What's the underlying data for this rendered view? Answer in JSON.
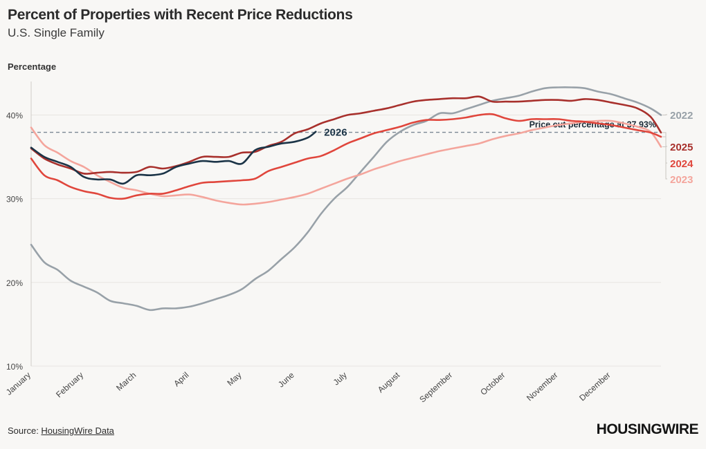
{
  "header": {
    "title": "Percent of Properties with Recent Price Reductions",
    "subtitle": "U.S. Single Family"
  },
  "footer": {
    "source_prefix": "Source: ",
    "source_link": "HousingWire Data",
    "logo": "HOUSINGWIRE"
  },
  "chart_data": {
    "type": "line",
    "ylabel": "Percentage",
    "xlabel": "",
    "ylim": [
      10,
      44
    ],
    "yticks": [
      10,
      20,
      30,
      40
    ],
    "ytick_labels": [
      "10%",
      "20%",
      "30%",
      "40%"
    ],
    "xlim": [
      0,
      11.95
    ],
    "xticks": [
      0,
      1,
      2,
      3,
      4,
      5,
      6,
      7,
      8,
      9,
      10,
      11
    ],
    "xtick_labels": [
      "January",
      "February",
      "March",
      "April",
      "May",
      "June",
      "July",
      "August",
      "September",
      "October",
      "November",
      "December"
    ],
    "grid": "horizontal",
    "legend": "direct labels at line ends",
    "reference_line": {
      "value": 37.93,
      "label": "Price cut percentage at 37.93%",
      "color": "#7b8794"
    },
    "series": [
      {
        "name": "2022",
        "color": "#98a1a8",
        "x": [
          0,
          0.25,
          0.5,
          0.75,
          1,
          1.25,
          1.5,
          1.75,
          2,
          2.25,
          2.5,
          2.75,
          3,
          3.25,
          3.5,
          3.75,
          4,
          4.25,
          4.5,
          4.75,
          5,
          5.25,
          5.5,
          5.75,
          6,
          6.25,
          6.5,
          6.75,
          7,
          7.25,
          7.5,
          7.75,
          8,
          8.25,
          8.5,
          8.75,
          9,
          9.25,
          9.5,
          9.75,
          10,
          10.25,
          10.5,
          10.75,
          11,
          11.25,
          11.5,
          11.75,
          11.95
        ],
        "values": [
          24.5,
          22.4,
          21.5,
          20.2,
          19.5,
          18.8,
          17.8,
          17.5,
          17.2,
          16.7,
          16.9,
          16.9,
          17.1,
          17.5,
          18,
          18.5,
          19.2,
          20.4,
          21.4,
          22.8,
          24.2,
          26,
          28.2,
          30,
          31.4,
          33.2,
          35,
          36.8,
          38,
          38.8,
          39.3,
          40.2,
          40.2,
          40.7,
          41.2,
          41.7,
          42,
          42.3,
          42.8,
          43.2,
          43.3,
          43.3,
          43.2,
          42.8,
          42.5,
          42,
          41.5,
          40.8,
          40
        ]
      },
      {
        "name": "2023",
        "color": "#f4a59c",
        "x": [
          0,
          0.25,
          0.5,
          0.75,
          1,
          1.25,
          1.5,
          1.75,
          2,
          2.25,
          2.5,
          2.75,
          3,
          3.25,
          3.5,
          3.75,
          4,
          4.25,
          4.5,
          4.75,
          5,
          5.25,
          5.5,
          5.75,
          6,
          6.25,
          6.5,
          6.75,
          7,
          7.25,
          7.5,
          7.75,
          8,
          8.25,
          8.5,
          8.75,
          9,
          9.25,
          9.5,
          9.75,
          10,
          10.25,
          10.5,
          10.75,
          11,
          11.25,
          11.5,
          11.75,
          11.95
        ],
        "values": [
          38.5,
          36.4,
          35.5,
          34.5,
          33.8,
          32.8,
          32,
          31.3,
          31,
          30.6,
          30.3,
          30.4,
          30.5,
          30.2,
          29.8,
          29.5,
          29.3,
          29.4,
          29.6,
          29.9,
          30.2,
          30.6,
          31.2,
          31.8,
          32.4,
          32.9,
          33.5,
          34,
          34.5,
          34.9,
          35.3,
          35.7,
          36,
          36.3,
          36.6,
          37.1,
          37.5,
          37.8,
          38.2,
          38.5,
          38.8,
          39,
          39.2,
          39.3,
          39.3,
          39,
          38.6,
          38,
          36.2
        ]
      },
      {
        "name": "2024",
        "color": "#e0463c",
        "x": [
          0,
          0.25,
          0.5,
          0.75,
          1,
          1.25,
          1.5,
          1.75,
          2,
          2.25,
          2.5,
          2.75,
          3,
          3.25,
          3.5,
          3.75,
          4,
          4.25,
          4.5,
          4.75,
          5,
          5.25,
          5.5,
          5.75,
          6,
          6.25,
          6.5,
          6.75,
          7,
          7.25,
          7.5,
          7.75,
          8,
          8.25,
          8.5,
          8.75,
          9,
          9.25,
          9.5,
          9.75,
          10,
          10.25,
          10.5,
          10.75,
          11,
          11.25,
          11.5,
          11.75,
          11.95
        ],
        "values": [
          34.8,
          32.8,
          32.2,
          31.4,
          30.9,
          30.6,
          30.1,
          30,
          30.4,
          30.6,
          30.6,
          31,
          31.5,
          31.9,
          32,
          32.1,
          32.2,
          32.4,
          33.3,
          33.8,
          34.3,
          34.8,
          35.1,
          35.8,
          36.6,
          37.2,
          37.8,
          38.2,
          38.6,
          39.1,
          39.4,
          39.4,
          39.5,
          39.7,
          40,
          40.1,
          39.6,
          39.3,
          39.5,
          39.5,
          39.5,
          39.3,
          39.2,
          39,
          38.8,
          38.5,
          38.2,
          37.9,
          37.4
        ]
      },
      {
        "name": "2025",
        "color": "#a8302c",
        "x": [
          0,
          0.25,
          0.5,
          0.75,
          1,
          1.25,
          1.5,
          1.75,
          2,
          2.25,
          2.5,
          2.75,
          3,
          3.25,
          3.5,
          3.75,
          4,
          4.25,
          4.5,
          4.75,
          5,
          5.25,
          5.5,
          5.75,
          6,
          6.25,
          6.5,
          6.75,
          7,
          7.25,
          7.5,
          7.75,
          8,
          8.25,
          8.5,
          8.75,
          9,
          9.25,
          9.5,
          9.75,
          10,
          10.25,
          10.5,
          10.75,
          11,
          11.25,
          11.5,
          11.75,
          11.95
        ],
        "values": [
          36,
          34.8,
          34.1,
          33.6,
          33,
          33.1,
          33.2,
          33.1,
          33.2,
          33.8,
          33.6,
          33.9,
          34.4,
          35,
          35,
          35,
          35.5,
          35.6,
          36.3,
          36.8,
          37.8,
          38.3,
          39,
          39.5,
          40,
          40.2,
          40.5,
          40.8,
          41.2,
          41.6,
          41.8,
          41.9,
          42,
          42,
          42.2,
          41.6,
          41.6,
          41.6,
          41.7,
          41.8,
          41.8,
          41.7,
          41.9,
          41.8,
          41.5,
          41.2,
          40.8,
          39.8,
          37.9
        ]
      },
      {
        "name": "2026",
        "color": "#1b3447",
        "x": [
          0,
          0.25,
          0.5,
          0.75,
          1,
          1.25,
          1.5,
          1.75,
          2,
          2.25,
          2.5,
          2.75,
          3,
          3.25,
          3.5,
          3.75,
          4,
          4.25,
          4.5,
          4.75,
          5,
          5.25,
          5.4
        ],
        "values": [
          36.1,
          35,
          34.4,
          33.8,
          32.6,
          32.3,
          32.3,
          31.8,
          32.8,
          32.8,
          33,
          33.8,
          34.2,
          34.5,
          34.4,
          34.5,
          34.2,
          35.8,
          36.2,
          36.6,
          36.8,
          37.3,
          38
        ]
      }
    ]
  }
}
